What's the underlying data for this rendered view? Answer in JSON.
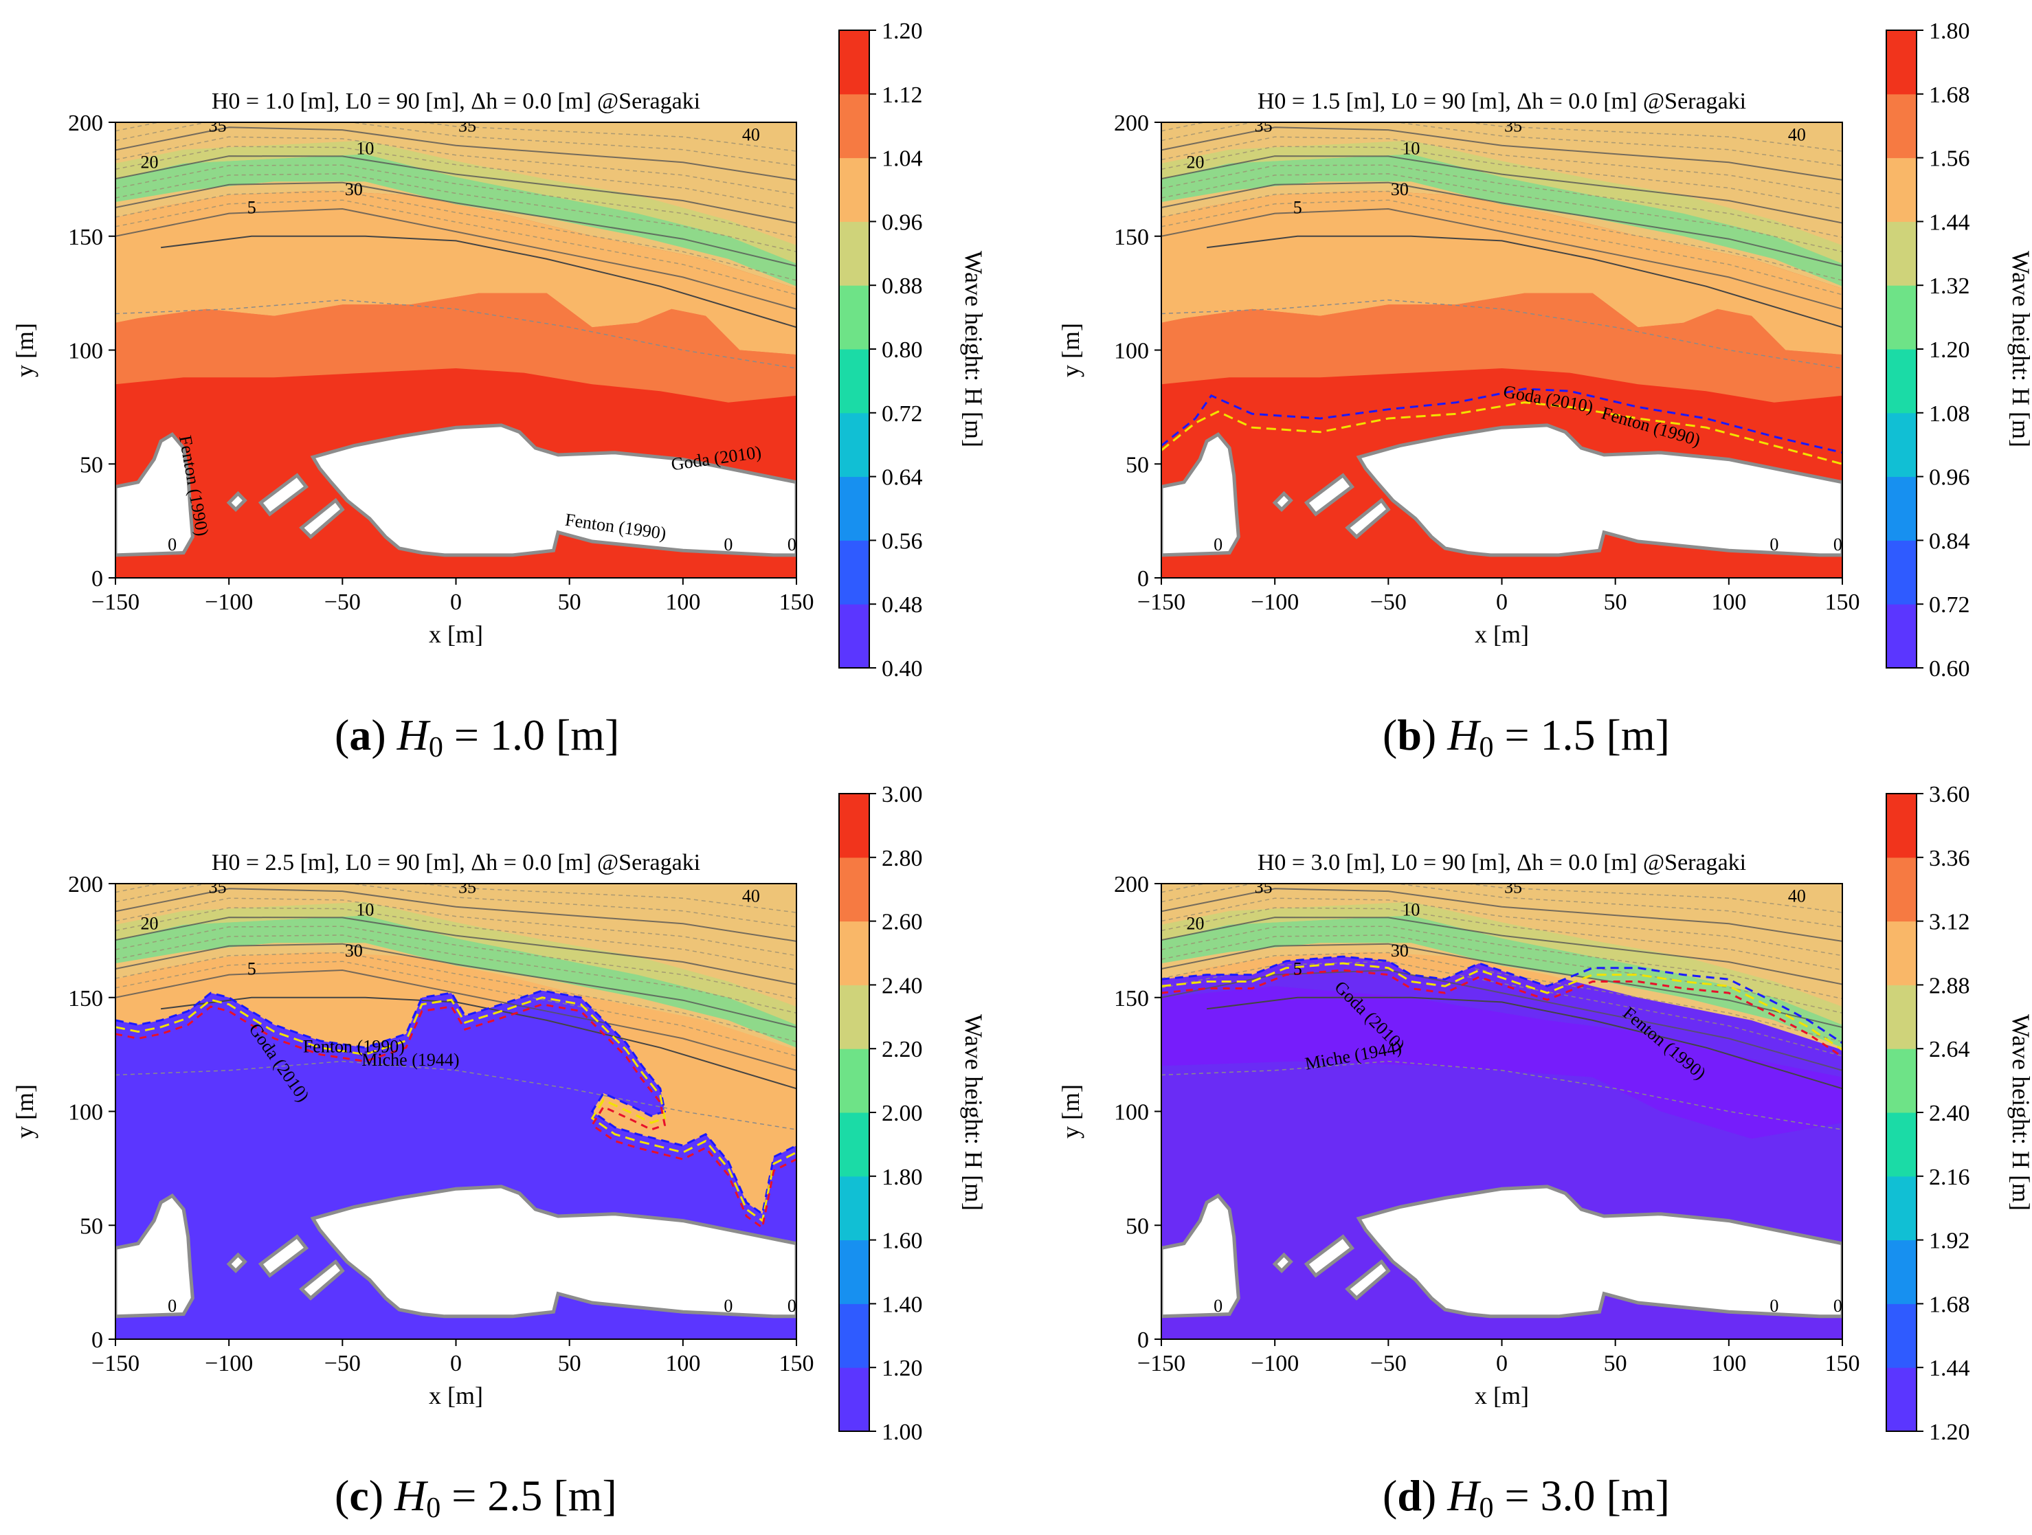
{
  "chart_data": [
    {
      "id": "a",
      "type": "heatmap",
      "title": "H0 = 1.0 [m], L0 = 90 [m], Δh = 0.0 [m] @Seragaki",
      "xlabel": "x [m]",
      "ylabel": "y [m]",
      "xlim": [
        -150,
        150
      ],
      "ylim": [
        0,
        200
      ],
      "xticks": [
        "−150",
        "−100",
        "−50",
        "0",
        "50",
        "100",
        "150"
      ],
      "yticks": [
        "0",
        "50",
        "100",
        "150",
        "200"
      ],
      "colorbar": {
        "label": "Wave height: H [m]",
        "ticks": [
          "0.40",
          "0.48",
          "0.56",
          "0.64",
          "0.72",
          "0.80",
          "0.88",
          "0.96",
          "1.04",
          "1.12",
          "1.20"
        ],
        "min": 0.4,
        "max": 1.2
      },
      "field": "high",
      "depth_labels": [
        "35",
        "35",
        "20",
        "30",
        "10",
        "5",
        "40",
        "0",
        "0",
        "0"
      ],
      "annotations": [
        {
          "text": "Goda (2010)",
          "color": "#f2e200"
        },
        {
          "text": "Fenton (1990)",
          "color": "#1a1aff"
        },
        {
          "text": "Fenton (1990)",
          "color": "#6a1ad0"
        }
      ],
      "caption": {
        "letter": "a",
        "symbol": "H",
        "sub": "0",
        "rest": " = 1.0 [m]"
      }
    },
    {
      "id": "b",
      "type": "heatmap",
      "title": "H0 = 1.5 [m], L0 = 90 [m], Δh = 0.0 [m] @Seragaki",
      "xlabel": "x [m]",
      "ylabel": "y [m]",
      "xlim": [
        -150,
        150
      ],
      "ylim": [
        0,
        200
      ],
      "xticks": [
        "−150",
        "−100",
        "−50",
        "0",
        "50",
        "100",
        "150"
      ],
      "yticks": [
        "0",
        "50",
        "100",
        "150",
        "200"
      ],
      "colorbar": {
        "label": "Wave height: H [m]",
        "ticks": [
          "0.60",
          "0.72",
          "0.84",
          "0.96",
          "1.08",
          "1.20",
          "1.32",
          "1.44",
          "1.56",
          "1.68",
          "1.80"
        ],
        "min": 0.6,
        "max": 1.8
      },
      "field": "high",
      "depth_labels": [
        "35",
        "35",
        "20",
        "30",
        "10",
        "5",
        "40",
        "0",
        "0",
        "0"
      ],
      "annotations": [
        {
          "text": "Goda (2010)",
          "color": "#f2e200"
        },
        {
          "text": "Fenton (1990)",
          "color": "#1a1aff"
        }
      ],
      "caption": {
        "letter": "b",
        "symbol": "H",
        "sub": "0",
        "rest": " = 1.5 [m]"
      }
    },
    {
      "id": "c",
      "type": "heatmap",
      "title": "H0 = 2.5 [m], L0 = 90 [m], Δh = 0.0 [m] @Seragaki",
      "xlabel": "x [m]",
      "ylabel": "y [m]",
      "xlim": [
        -150,
        150
      ],
      "ylim": [
        0,
        200
      ],
      "xticks": [
        "−150",
        "−100",
        "−50",
        "0",
        "50",
        "100",
        "150"
      ],
      "yticks": [
        "0",
        "50",
        "100",
        "150",
        "200"
      ],
      "colorbar": {
        "label": "Wave height: H [m]",
        "ticks": [
          "1.00",
          "1.20",
          "1.40",
          "1.60",
          "1.80",
          "2.00",
          "2.20",
          "2.40",
          "2.60",
          "2.80",
          "3.00"
        ],
        "min": 1.0,
        "max": 3.0
      },
      "field": "low",
      "depth_labels": [
        "35",
        "35",
        "20",
        "30",
        "10",
        "5",
        "40",
        "0",
        "0",
        "0"
      ],
      "annotations": [
        {
          "text": "Goda (2010)",
          "color": "#f2e200"
        },
        {
          "text": "Fenton (1990)",
          "color": "#1a1aff"
        },
        {
          "text": "Miche (1944)",
          "color": "#e8102a"
        }
      ],
      "caption": {
        "letter": "c",
        "symbol": "H",
        "sub": "0",
        "rest": " = 2.5 [m]"
      }
    },
    {
      "id": "d",
      "type": "heatmap",
      "title": "H0 = 3.0 [m], L0 = 90 [m], Δh = 0.0 [m] @Seragaki",
      "xlabel": "x [m]",
      "ylabel": "y [m]",
      "xlim": [
        -150,
        150
      ],
      "ylim": [
        0,
        200
      ],
      "xticks": [
        "−150",
        "−100",
        "−50",
        "0",
        "50",
        "100",
        "150"
      ],
      "yticks": [
        "0",
        "50",
        "100",
        "150",
        "200"
      ],
      "colorbar": {
        "label": "Wave height: H [m]",
        "ticks": [
          "1.20",
          "1.44",
          "1.68",
          "1.92",
          "2.16",
          "2.40",
          "2.64",
          "2.88",
          "3.12",
          "3.36",
          "3.60"
        ],
        "min": 1.2,
        "max": 3.6
      },
      "field": "lowest",
      "depth_labels": [
        "35",
        "35",
        "20",
        "30",
        "10",
        "5",
        "40",
        "0",
        "0",
        "0"
      ],
      "annotations": [
        {
          "text": "Goda (2010)",
          "color": "#f2e200"
        },
        {
          "text": "Fenton (1990)",
          "color": "#1a1aff"
        },
        {
          "text": "Miche (1944)",
          "color": "#e8102a"
        }
      ],
      "caption": {
        "letter": "d",
        "symbol": "H",
        "sub": "0",
        "rest": " = 3.0 [m]"
      }
    }
  ]
}
